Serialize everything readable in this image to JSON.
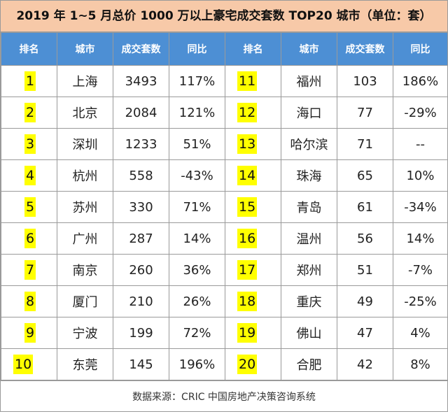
{
  "title": "2019 年 1~5 月总价 1000 万以上豪宅成交套数    TOP20 城市（单位：套）",
  "headers": {
    "rank": "排名",
    "city": "城市",
    "count": "成交套数",
    "yoy": "同比"
  },
  "rows": [
    {
      "left": {
        "rank": "1",
        "city": "上海",
        "count": "3493",
        "yoy": "117%"
      },
      "right": {
        "rank": "11",
        "city": "福州",
        "count": "103",
        "yoy": "186%"
      }
    },
    {
      "left": {
        "rank": "2",
        "city": "北京",
        "count": "2084",
        "yoy": "121%"
      },
      "right": {
        "rank": "12",
        "city": "海口",
        "count": "77",
        "yoy": "-29%"
      }
    },
    {
      "left": {
        "rank": "3",
        "city": "深圳",
        "count": "1233",
        "yoy": "51%"
      },
      "right": {
        "rank": "13",
        "city": "哈尔滨",
        "count": "71",
        "yoy": "--"
      }
    },
    {
      "left": {
        "rank": "4",
        "city": "杭州",
        "count": "558",
        "yoy": "-43%"
      },
      "right": {
        "rank": "14",
        "city": "珠海",
        "count": "65",
        "yoy": "10%"
      }
    },
    {
      "left": {
        "rank": "5",
        "city": "苏州",
        "count": "330",
        "yoy": "71%"
      },
      "right": {
        "rank": "15",
        "city": "青岛",
        "count": "61",
        "yoy": "-34%"
      }
    },
    {
      "left": {
        "rank": "6",
        "city": "广州",
        "count": "287",
        "yoy": "14%"
      },
      "right": {
        "rank": "16",
        "city": "温州",
        "count": "56",
        "yoy": "14%"
      }
    },
    {
      "left": {
        "rank": "7",
        "city": "南京",
        "count": "260",
        "yoy": "36%"
      },
      "right": {
        "rank": "17",
        "city": "郑州",
        "count": "51",
        "yoy": "-7%"
      }
    },
    {
      "left": {
        "rank": "8",
        "city": "厦门",
        "count": "210",
        "yoy": "26%"
      },
      "right": {
        "rank": "18",
        "city": "重庆",
        "count": "49",
        "yoy": "-25%"
      }
    },
    {
      "left": {
        "rank": "9",
        "city": "宁波",
        "count": "199",
        "yoy": "72%"
      },
      "right": {
        "rank": "19",
        "city": "佛山",
        "count": "47",
        "yoy": "4%"
      }
    },
    {
      "left": {
        "rank": "10",
        "city": "东莞",
        "count": "145",
        "yoy": "196%"
      },
      "right": {
        "rank": "20",
        "city": "合肥",
        "count": "42",
        "yoy": "8%"
      }
    }
  ],
  "source": "数据来源：CRIC 中国房地产决策咨询系统",
  "colors": {
    "title_bg": "#f7c9a8",
    "header_bg": "#4d8fd4",
    "rank_highlight": "#ffff00"
  }
}
